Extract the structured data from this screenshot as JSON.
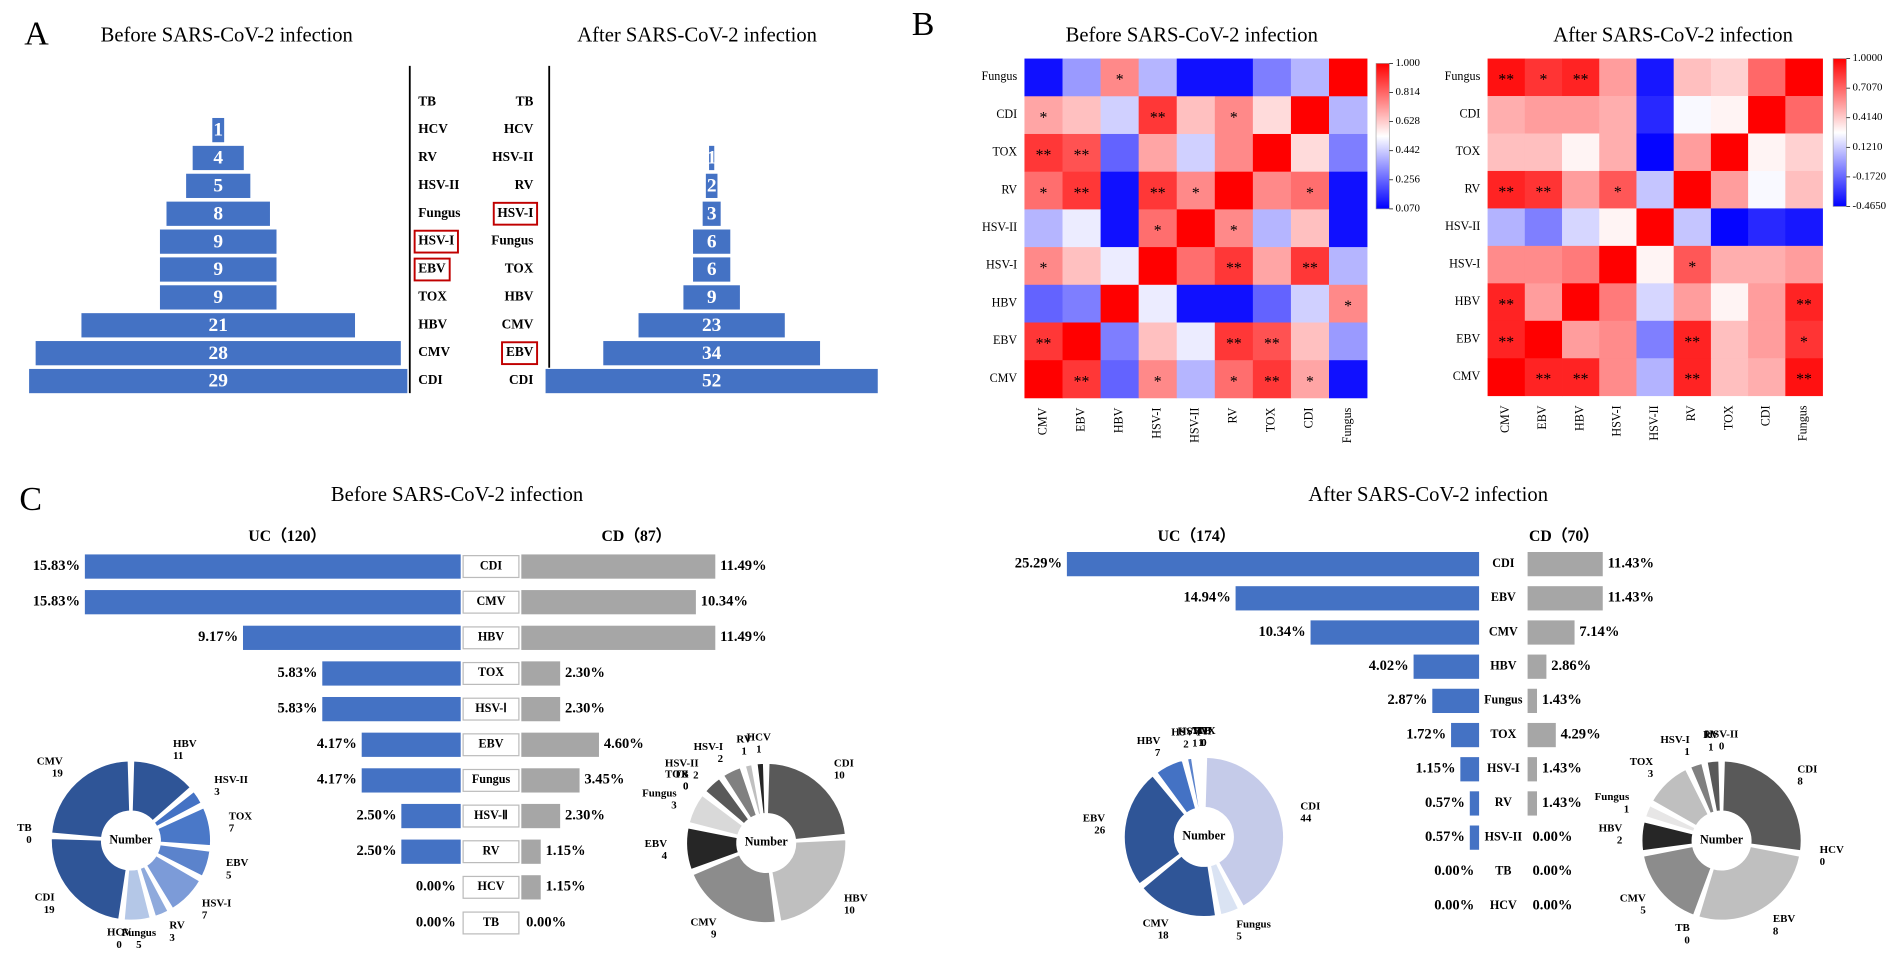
{
  "panel_labels": [
    "A",
    "B",
    "C"
  ],
  "chart_data": [
    {
      "type": "pyramid",
      "title": "Before SARS-CoV-2 infection",
      "categories": [
        "TB",
        "HCV",
        "RV",
        "HSV-II",
        "Fungus",
        "HSV-I",
        "EBV",
        "TOX",
        "HBV",
        "CMV",
        "CDI"
      ],
      "values": [
        0,
        1,
        4,
        5,
        8,
        9,
        9,
        9,
        21,
        28,
        29
      ],
      "color": "#4472c4",
      "label_side": "right",
      "highlight": [
        5,
        6
      ]
    },
    {
      "type": "pyramid",
      "title": "After SARS-CoV-2 infection",
      "categories": [
        "TB",
        "HCV",
        "HSV-II",
        "RV",
        "HSV-I",
        "Fungus",
        "TOX",
        "HBV",
        "CMV",
        "EBV",
        "CDI"
      ],
      "values": [
        0,
        0,
        1,
        2,
        3,
        6,
        6,
        9,
        23,
        34,
        52
      ],
      "color": "#4472c4",
      "label_side": "left",
      "highlight": [
        4,
        9
      ]
    },
    {
      "type": "heatmap",
      "title": "Before SARS-CoV-2 infection",
      "rows": [
        "Fungus",
        "CDI",
        "TOX",
        "RV",
        "HSV-II",
        "HSV-I",
        "HBV",
        "EBV",
        "CMV"
      ],
      "columns": [
        "CMV",
        "EBV",
        "HBV",
        "HSV-I",
        "HSV-II",
        "RV",
        "TOX",
        "CDI",
        "Fungus"
      ],
      "values": [
        [
          0.1,
          0.35,
          0.75,
          0.4,
          0.1,
          0.1,
          0.3,
          0.4,
          1.0
        ],
        [
          0.7,
          0.65,
          0.45,
          0.9,
          0.65,
          0.75,
          0.6,
          1.0,
          0.4
        ],
        [
          0.9,
          0.85,
          0.25,
          0.7,
          0.45,
          0.75,
          1.0,
          0.6,
          0.3
        ],
        [
          0.8,
          0.9,
          0.1,
          0.9,
          0.75,
          1.0,
          0.75,
          0.8,
          0.1
        ],
        [
          0.4,
          0.5,
          0.1,
          0.8,
          1.0,
          0.75,
          0.4,
          0.65,
          0.1
        ],
        [
          0.75,
          0.65,
          0.5,
          1.0,
          0.8,
          0.9,
          0.7,
          0.9,
          0.4
        ],
        [
          0.25,
          0.3,
          1.0,
          0.5,
          0.1,
          0.1,
          0.25,
          0.45,
          0.75
        ],
        [
          0.9,
          1.0,
          0.3,
          0.65,
          0.5,
          0.9,
          0.85,
          0.65,
          0.35
        ],
        [
          1.0,
          0.9,
          0.25,
          0.75,
          0.4,
          0.8,
          0.9,
          0.7,
          0.1
        ]
      ],
      "annotations": [
        [
          null,
          null,
          "*",
          null,
          null,
          null,
          null,
          null,
          null
        ],
        [
          "*",
          null,
          null,
          "**",
          null,
          "*",
          null,
          null,
          null
        ],
        [
          "**",
          "**",
          null,
          null,
          null,
          null,
          null,
          null,
          null
        ],
        [
          "*",
          "**",
          null,
          "**",
          "*",
          null,
          null,
          "*",
          null
        ],
        [
          null,
          null,
          null,
          "*",
          null,
          "*",
          null,
          null,
          null
        ],
        [
          "*",
          null,
          null,
          null,
          null,
          "**",
          null,
          "**",
          null
        ],
        [
          null,
          null,
          null,
          null,
          null,
          null,
          null,
          null,
          "*"
        ],
        [
          "**",
          null,
          null,
          null,
          null,
          "**",
          "**",
          null,
          null
        ],
        [
          null,
          "**",
          null,
          "*",
          null,
          "*",
          "**",
          "*",
          null
        ]
      ],
      "zlim": [
        0.07,
        1
      ],
      "zticks": [
        {
          "value": 1,
          "label": "1.000"
        },
        0.814,
        0.628,
        0.442,
        0.256,
        {
          "value": 0.07,
          "label": "0.070"
        }
      ],
      "colormap": [
        "#0000ff",
        "#ffffff",
        "#ff0000"
      ]
    },
    {
      "type": "heatmap",
      "title": "After SARS-CoV-2 infection",
      "rows": [
        "Fungus",
        "CDI",
        "TOX",
        "RV",
        "HSV-II",
        "HSV-I",
        "HBV",
        "EBV",
        "CMV"
      ],
      "columns": [
        "CMV",
        "EBV",
        "HBV",
        "HSV-I",
        "HSV-II",
        "RV",
        "TOX",
        "CDI",
        "Fungus"
      ],
      "values": [
        [
          0.95,
          0.85,
          0.9,
          0.55,
          -0.4,
          0.45,
          0.4,
          0.7,
          1.0
        ],
        [
          0.5,
          0.55,
          0.55,
          0.5,
          -0.35,
          0.25,
          0.3,
          1.0,
          0.7
        ],
        [
          0.45,
          0.45,
          0.3,
          0.5,
          -0.45,
          0.55,
          1.0,
          0.3,
          0.4
        ],
        [
          0.9,
          0.85,
          0.55,
          0.75,
          0.1,
          1.0,
          0.55,
          0.25,
          0.45
        ],
        [
          0.05,
          -0.1,
          0.15,
          0.3,
          1.0,
          0.1,
          -0.45,
          -0.35,
          -0.4
        ],
        [
          0.6,
          0.6,
          0.65,
          1.0,
          0.3,
          0.75,
          0.5,
          0.5,
          0.55
        ],
        [
          0.9,
          0.55,
          1.0,
          0.65,
          0.15,
          0.55,
          0.3,
          0.55,
          0.9
        ],
        [
          0.9,
          1.0,
          0.55,
          0.6,
          -0.1,
          0.9,
          0.45,
          0.55,
          0.85
        ],
        [
          1.0,
          0.9,
          0.9,
          0.6,
          0.05,
          0.9,
          0.45,
          0.5,
          0.95
        ]
      ],
      "annotations": [
        [
          "**",
          "*",
          "**",
          null,
          null,
          null,
          null,
          null,
          null
        ],
        [
          null,
          null,
          null,
          null,
          null,
          null,
          null,
          null,
          null
        ],
        [
          null,
          null,
          null,
          null,
          null,
          null,
          null,
          null,
          null
        ],
        [
          "**",
          "**",
          null,
          "*",
          null,
          null,
          null,
          null,
          null
        ],
        [
          null,
          null,
          null,
          null,
          null,
          null,
          null,
          null,
          null
        ],
        [
          null,
          null,
          null,
          null,
          null,
          "*",
          null,
          null,
          null
        ],
        [
          "**",
          null,
          null,
          null,
          null,
          null,
          null,
          null,
          "**"
        ],
        [
          "**",
          null,
          null,
          null,
          null,
          "**",
          null,
          null,
          "*"
        ],
        [
          null,
          "**",
          "**",
          null,
          null,
          "**",
          null,
          null,
          "**"
        ]
      ],
      "zlim": [
        -0.465,
        1
      ],
      "zticks": [
        {
          "value": 1,
          "label": "1.0000"
        },
        {
          "value": 0.707,
          "label": "0.7070"
        },
        {
          "value": 0.414,
          "label": "0.4140"
        },
        {
          "value": 0.121,
          "label": "0.1210"
        },
        {
          "value": -0.172,
          "label": "-0.1720"
        },
        {
          "value": -0.465,
          "label": "-0.4650"
        }
      ],
      "colormap": [
        "#0000ff",
        "#ffffff",
        "#ff0000"
      ]
    },
    {
      "type": "butterfly",
      "title": "Before SARS-CoV-2 infection",
      "categories": [
        "CDI",
        "CMV",
        "HBV",
        "TOX",
        "HSV-Ⅰ",
        "EBV",
        "Fungus",
        "HSV-Ⅱ",
        "RV",
        "HCV",
        "TB"
      ],
      "series": [
        {
          "name": "UC（120）",
          "color": "#4472c4",
          "values": [
            15.83,
            15.83,
            9.17,
            5.83,
            5.83,
            4.17,
            4.17,
            2.5,
            2.5,
            0,
            0
          ],
          "value_labels": [
            "15.83%",
            "15.83%",
            "9.17%",
            "5.83%",
            "5.83%",
            "4.17%",
            "4.17%",
            "2.50%",
            "2.50%",
            "0.00%",
            "0.00%"
          ]
        },
        {
          "name": "CD（87）",
          "color": "#a6a6a6",
          "values": [
            11.49,
            10.34,
            11.49,
            2.3,
            2.3,
            4.6,
            3.45,
            2.3,
            1.15,
            1.15,
            0
          ],
          "value_labels": [
            "11.49%",
            "10.34%",
            "11.49%",
            "2.30%",
            "2.30%",
            "4.60%",
            "3.45%",
            "2.30%",
            "1.15%",
            "1.15%",
            "0.00%"
          ]
        }
      ]
    },
    {
      "type": "butterfly",
      "title": "After SARS-CoV-2 infection",
      "categories": [
        "CDI",
        "EBV",
        "CMV",
        "HBV",
        "Fungus",
        "TOX",
        "HSV-I",
        "RV",
        "HSV-II",
        "TB",
        "HCV"
      ],
      "series": [
        {
          "name": "UC（174）",
          "color": "#4472c4",
          "values": [
            25.29,
            14.94,
            10.34,
            4.02,
            2.87,
            1.72,
            1.15,
            0.57,
            0.57,
            0,
            0
          ],
          "value_labels": [
            "25.29%",
            "14.94%",
            "10.34%",
            "4.02%",
            "2.87%",
            "1.72%",
            "1.15%",
            "0.57%",
            "0.57%",
            "0.00%",
            "0.00%"
          ]
        },
        {
          "name": "CD（70）",
          "color": "#a6a6a6",
          "values": [
            11.43,
            11.43,
            7.14,
            2.86,
            1.43,
            4.29,
            1.43,
            1.43,
            0,
            0,
            0
          ],
          "value_labels": [
            "11.43%",
            "11.43%",
            "7.14%",
            "2.86%",
            "1.43%",
            "4.29%",
            "1.43%",
            "1.43%",
            "0.00%",
            "0.00%",
            "0.00%"
          ]
        }
      ]
    },
    {
      "type": "donut",
      "center_label": "Number",
      "categories": [
        "HBV",
        "HSV-II",
        "TOX",
        "EBV",
        "HSV-I",
        "RV",
        "Fungus",
        "HCV",
        "CDI",
        "TB",
        "CMV"
      ],
      "values": [
        11,
        3,
        7,
        5,
        7,
        3,
        5,
        0,
        19,
        0,
        19
      ],
      "colors": [
        "#2f5597",
        "#4472c4",
        "#4a78c8",
        "#5b83cc",
        "#7c9bd8",
        "#8faadc",
        "#b4c7e7",
        "#9db4e0",
        "#2f5597",
        "#dae3f3",
        "#2f5597"
      ]
    },
    {
      "type": "donut",
      "center_label": "Number",
      "categories": [
        "CDI",
        "HBV",
        "CMV",
        "EBV",
        "Fungus",
        "TB",
        "TOX",
        "HSV-II",
        "HSV-I",
        "RV",
        "HCV"
      ],
      "values": [
        10,
        10,
        9,
        4,
        3,
        0,
        0,
        2,
        2,
        1,
        1
      ],
      "colors": [
        "#595959",
        "#bfbfbf",
        "#8c8c8c",
        "#262626",
        "#d9d9d9",
        "#7f7f7f",
        "#a6a6a6",
        "#595959",
        "#808080",
        "#bfbfbf",
        "#262626"
      ]
    },
    {
      "type": "donut",
      "center_label": "Number",
      "categories": [
        "CDI",
        "Fungus",
        "CMV",
        "EBV",
        "HBV",
        "HSV-I",
        "HSV-II",
        "RV",
        "TOX",
        "TB"
      ],
      "values": [
        44,
        5,
        18,
        26,
        7,
        2,
        1,
        1,
        0,
        0
      ],
      "colors": [
        "#c5cbe9",
        "#dae3f3",
        "#2f5597",
        "#2f5597",
        "#4472c4",
        "#5b83cc",
        "#7c9bd8",
        "#8faadc",
        "#b4c7e7",
        "#dae3f3"
      ]
    },
    {
      "type": "donut",
      "center_label": "Number",
      "categories": [
        "CDI",
        "HCV",
        "EBV",
        "TB",
        "CMV",
        "HBV",
        "Fungus",
        "TOX",
        "HSV-I",
        "RV",
        "HSV-II"
      ],
      "values": [
        8,
        0,
        8,
        0,
        5,
        2,
        1,
        3,
        1,
        1,
        0
      ],
      "colors": [
        "#595959",
        "#d9d9d9",
        "#bfbfbf",
        "#7f7f7f",
        "#8c8c8c",
        "#262626",
        "#e7e6e6",
        "#bfbfbf",
        "#808080",
        "#595959",
        "#404040"
      ]
    }
  ]
}
